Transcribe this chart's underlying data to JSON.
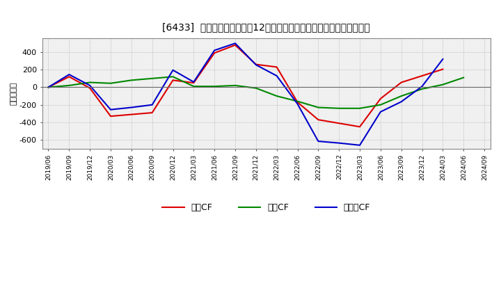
{
  "title": "[6433]  キャッシュフローの12か月移動合計の対前年同期増減額の推移",
  "ylabel": "（百万円）",
  "xlabel_dates": [
    "2019/06",
    "2019/09",
    "2019/12",
    "2020/03",
    "2020/06",
    "2020/09",
    "2020/12",
    "2021/03",
    "2021/06",
    "2021/09",
    "2021/12",
    "2022/03",
    "2022/06",
    "2022/09",
    "2022/12",
    "2023/03",
    "2023/06",
    "2023/09",
    "2023/12",
    "2024/03",
    "2024/06",
    "2024/09"
  ],
  "operating_cf": [
    0,
    120,
    -10,
    -330,
    -310,
    -290,
    80,
    50,
    390,
    480,
    260,
    230,
    -170,
    -370,
    -410,
    -450,
    -130,
    55,
    130,
    205,
    null,
    null
  ],
  "investing_cf": [
    0,
    20,
    55,
    45,
    80,
    100,
    120,
    10,
    10,
    20,
    -10,
    -100,
    -160,
    -230,
    -240,
    -240,
    -200,
    -100,
    -20,
    30,
    110,
    null
  ],
  "free_cf": [
    0,
    145,
    20,
    -255,
    -230,
    -200,
    195,
    60,
    420,
    500,
    255,
    130,
    -190,
    -615,
    -635,
    -660,
    -280,
    -165,
    10,
    320,
    null,
    null
  ],
  "operating_color": "#dd0000",
  "investing_color": "#008800",
  "free_color": "#0000cc",
  "bg_color": "#f0f0f0",
  "plot_bg_color": "#f0f0f0",
  "grid_color": "#aaaaaa",
  "ylim": [
    -700,
    560
  ],
  "yticks": [
    -600,
    -400,
    -200,
    0,
    200,
    400
  ],
  "legend_labels": [
    "営業CF",
    "投資CF",
    "フリーCF"
  ]
}
